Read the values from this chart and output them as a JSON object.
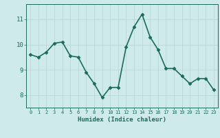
{
  "x": [
    0,
    1,
    2,
    3,
    4,
    5,
    6,
    7,
    8,
    9,
    10,
    11,
    12,
    13,
    14,
    15,
    16,
    17,
    18,
    19,
    20,
    21,
    22,
    23
  ],
  "y": [
    9.6,
    9.5,
    9.7,
    10.05,
    10.1,
    9.55,
    9.5,
    8.9,
    8.45,
    7.9,
    8.3,
    8.3,
    9.9,
    10.7,
    11.2,
    10.3,
    9.8,
    9.05,
    9.05,
    8.75,
    8.45,
    8.65,
    8.65,
    8.2
  ],
  "color": "#1a6b5a",
  "bg_color": "#ceeaea",
  "grid_color": "#b8d8d8",
  "xlabel": "Humidex (Indice chaleur)",
  "xlim": [
    -0.5,
    23.5
  ],
  "ylim": [
    7.5,
    11.6
  ],
  "yticks": [
    8,
    9,
    10,
    11
  ],
  "xticks": [
    0,
    1,
    2,
    3,
    4,
    5,
    6,
    7,
    8,
    9,
    10,
    11,
    12,
    13,
    14,
    15,
    16,
    17,
    18,
    19,
    20,
    21,
    22,
    23
  ],
  "markersize": 2.5,
  "linewidth": 1.2
}
